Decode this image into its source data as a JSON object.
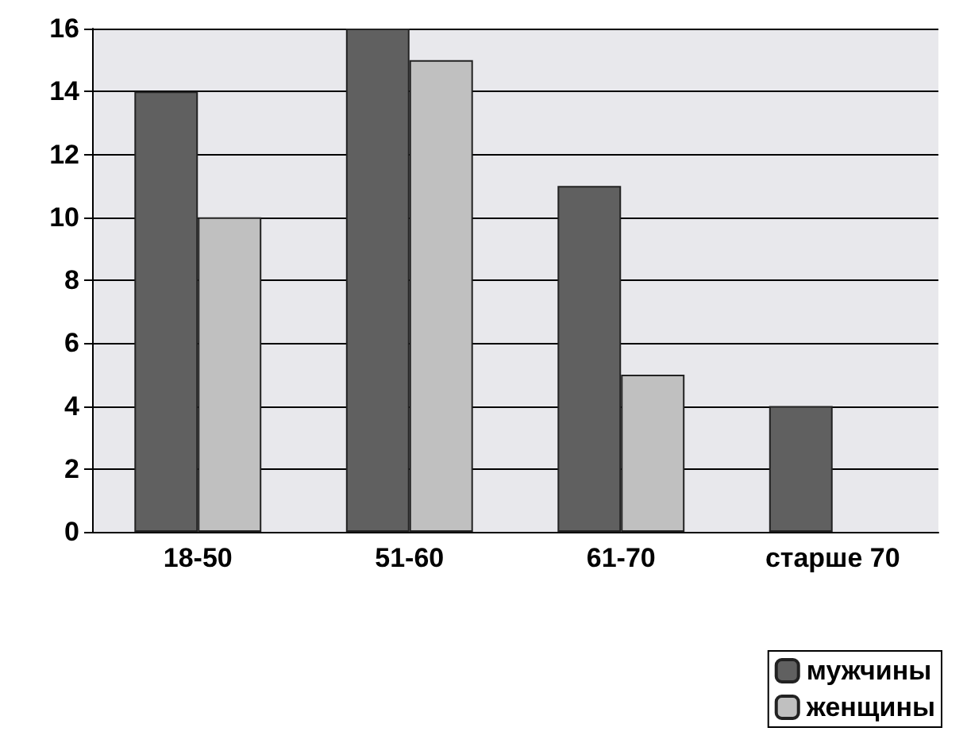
{
  "chart_data": {
    "type": "bar",
    "categories": [
      "18-50",
      "51-60",
      "61-70",
      "старше 70"
    ],
    "series": [
      {
        "name": "мужчины",
        "color": "#606060",
        "values": [
          14,
          16,
          11,
          4
        ]
      },
      {
        "name": "женщины",
        "color": "#c0c0c0",
        "values": [
          10,
          15,
          5,
          0
        ]
      }
    ],
    "ylim": [
      0,
      16
    ],
    "yticks": [
      0,
      2,
      4,
      6,
      8,
      10,
      12,
      14,
      16
    ],
    "grid": "y",
    "legend": "bottom right"
  }
}
